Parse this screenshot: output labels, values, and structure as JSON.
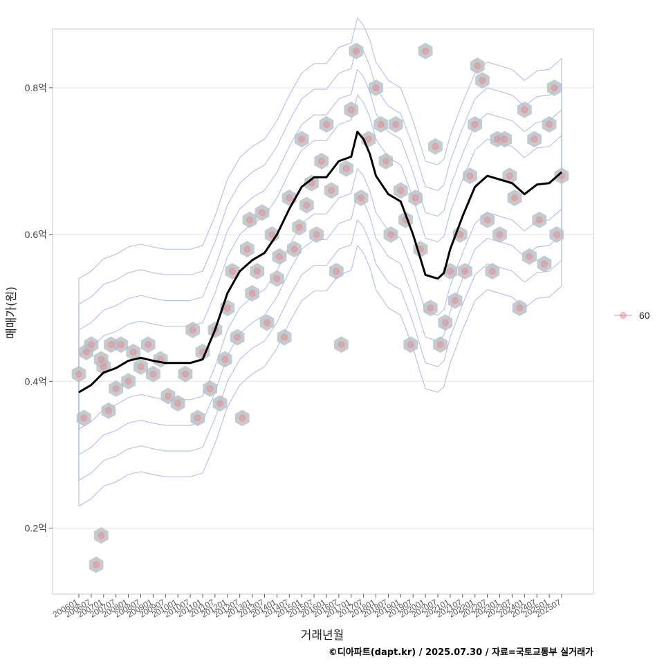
{
  "chart_data": {
    "type": "scatter",
    "xlabel": "거래년월",
    "ylabel": "매매가(원)",
    "x_tick_labels": [
      "200601",
      "200607",
      "200701",
      "200707",
      "200801",
      "200807",
      "200901",
      "200907",
      "201001",
      "201007",
      "201101",
      "201107",
      "201201",
      "201207",
      "201301",
      "201307",
      "201401",
      "201407",
      "201501",
      "201507",
      "201601",
      "201607",
      "201701",
      "201707",
      "201801",
      "201807",
      "201901",
      "201907",
      "202001",
      "202007",
      "202101",
      "202107",
      "202201",
      "202207",
      "202301",
      "202307",
      "202401",
      "202407",
      "202501",
      "202507"
    ],
    "y_ticks": [
      0.2,
      0.4,
      0.6,
      0.8
    ],
    "y_tick_labels": [
      "0.2억",
      "0.4억",
      "0.6억",
      "0.8억"
    ],
    "ylim": [
      0.11,
      0.88
    ],
    "grid": true,
    "legend": {
      "position": "right",
      "entries": [
        "60"
      ]
    },
    "colors": {
      "points": "#f08080",
      "line": "#000000",
      "hex": "#b5bec4",
      "contour": "#a9b8f0"
    },
    "trend_series": {
      "name": "moving-average",
      "x": [
        "2006.0",
        "2006.5",
        "2007.0",
        "2007.5",
        "2008.0",
        "2008.5",
        "2009.0",
        "2009.5",
        "2010.0",
        "2010.5",
        "2011.0",
        "2011.5",
        "2012.0",
        "2012.5",
        "2013.0",
        "2013.5",
        "2014.0",
        "2014.5",
        "2015.0",
        "2015.5",
        "2016.0",
        "2016.5",
        "2017.0",
        "2017.25",
        "2017.5",
        "2017.75",
        "2018.0",
        "2018.5",
        "2019.0",
        "2019.5",
        "2020.0",
        "2020.5",
        "2020.75",
        "2021.0",
        "2021.5",
        "2022.0",
        "2022.5",
        "2023.0",
        "2023.5",
        "2024.0",
        "2024.5",
        "2025.0",
        "2025.5"
      ],
      "y": [
        0.385,
        0.395,
        0.412,
        0.418,
        0.428,
        0.432,
        0.428,
        0.425,
        0.425,
        0.425,
        0.43,
        0.47,
        0.52,
        0.55,
        0.565,
        0.575,
        0.6,
        0.635,
        0.665,
        0.678,
        0.678,
        0.7,
        0.706,
        0.74,
        0.73,
        0.71,
        0.68,
        0.655,
        0.645,
        0.6,
        0.545,
        0.54,
        0.548,
        0.58,
        0.625,
        0.665,
        0.68,
        0.675,
        0.67,
        0.655,
        0.668,
        0.67,
        0.685
      ]
    },
    "points": [
      {
        "x": 2006.0,
        "y": 0.41
      },
      {
        "x": 2006.2,
        "y": 0.35
      },
      {
        "x": 2006.3,
        "y": 0.44
      },
      {
        "x": 2006.5,
        "y": 0.45
      },
      {
        "x": 2006.7,
        "y": 0.15
      },
      {
        "x": 2006.9,
        "y": 0.19
      },
      {
        "x": 2006.9,
        "y": 0.43
      },
      {
        "x": 2007.0,
        "y": 0.42
      },
      {
        "x": 2007.2,
        "y": 0.36
      },
      {
        "x": 2007.3,
        "y": 0.45
      },
      {
        "x": 2007.5,
        "y": 0.39
      },
      {
        "x": 2007.7,
        "y": 0.45
      },
      {
        "x": 2008.0,
        "y": 0.4
      },
      {
        "x": 2008.2,
        "y": 0.44
      },
      {
        "x": 2008.5,
        "y": 0.42
      },
      {
        "x": 2008.8,
        "y": 0.45
      },
      {
        "x": 2009.0,
        "y": 0.41
      },
      {
        "x": 2009.3,
        "y": 0.43
      },
      {
        "x": 2009.6,
        "y": 0.38
      },
      {
        "x": 2010.0,
        "y": 0.37
      },
      {
        "x": 2010.3,
        "y": 0.41
      },
      {
        "x": 2010.6,
        "y": 0.47
      },
      {
        "x": 2010.8,
        "y": 0.35
      },
      {
        "x": 2011.0,
        "y": 0.44
      },
      {
        "x": 2011.3,
        "y": 0.39
      },
      {
        "x": 2011.5,
        "y": 0.47
      },
      {
        "x": 2011.7,
        "y": 0.37
      },
      {
        "x": 2011.9,
        "y": 0.43
      },
      {
        "x": 2012.0,
        "y": 0.5
      },
      {
        "x": 2012.2,
        "y": 0.55
      },
      {
        "x": 2012.4,
        "y": 0.46
      },
      {
        "x": 2012.6,
        "y": 0.35
      },
      {
        "x": 2012.8,
        "y": 0.58
      },
      {
        "x": 2012.9,
        "y": 0.62
      },
      {
        "x": 2013.0,
        "y": 0.52
      },
      {
        "x": 2013.2,
        "y": 0.55
      },
      {
        "x": 2013.4,
        "y": 0.63
      },
      {
        "x": 2013.6,
        "y": 0.48
      },
      {
        "x": 2013.8,
        "y": 0.6
      },
      {
        "x": 2014.0,
        "y": 0.54
      },
      {
        "x": 2014.1,
        "y": 0.57
      },
      {
        "x": 2014.3,
        "y": 0.46
      },
      {
        "x": 2014.5,
        "y": 0.65
      },
      {
        "x": 2014.7,
        "y": 0.58
      },
      {
        "x": 2014.9,
        "y": 0.61
      },
      {
        "x": 2015.0,
        "y": 0.73
      },
      {
        "x": 2015.2,
        "y": 0.64
      },
      {
        "x": 2015.4,
        "y": 0.67
      },
      {
        "x": 2015.6,
        "y": 0.6
      },
      {
        "x": 2015.8,
        "y": 0.7
      },
      {
        "x": 2016.0,
        "y": 0.75
      },
      {
        "x": 2016.2,
        "y": 0.66
      },
      {
        "x": 2016.4,
        "y": 0.55
      },
      {
        "x": 2016.6,
        "y": 0.45
      },
      {
        "x": 2016.8,
        "y": 0.69
      },
      {
        "x": 2017.0,
        "y": 0.77
      },
      {
        "x": 2017.2,
        "y": 0.85
      },
      {
        "x": 2017.4,
        "y": 0.65
      },
      {
        "x": 2017.7,
        "y": 0.73
      },
      {
        "x": 2018.0,
        "y": 0.8
      },
      {
        "x": 2018.2,
        "y": 0.75
      },
      {
        "x": 2018.4,
        "y": 0.7
      },
      {
        "x": 2018.6,
        "y": 0.6
      },
      {
        "x": 2018.8,
        "y": 0.75
      },
      {
        "x": 2019.0,
        "y": 0.66
      },
      {
        "x": 2019.2,
        "y": 0.62
      },
      {
        "x": 2019.4,
        "y": 0.45
      },
      {
        "x": 2019.6,
        "y": 0.65
      },
      {
        "x": 2019.8,
        "y": 0.58
      },
      {
        "x": 2020.0,
        "y": 0.85
      },
      {
        "x": 2020.2,
        "y": 0.5
      },
      {
        "x": 2020.4,
        "y": 0.72
      },
      {
        "x": 2020.6,
        "y": 0.45
      },
      {
        "x": 2020.8,
        "y": 0.48
      },
      {
        "x": 2021.0,
        "y": 0.55
      },
      {
        "x": 2021.2,
        "y": 0.51
      },
      {
        "x": 2021.4,
        "y": 0.6
      },
      {
        "x": 2021.6,
        "y": 0.55
      },
      {
        "x": 2021.8,
        "y": 0.68
      },
      {
        "x": 2022.0,
        "y": 0.75
      },
      {
        "x": 2022.1,
        "y": 0.83
      },
      {
        "x": 2022.3,
        "y": 0.81
      },
      {
        "x": 2022.5,
        "y": 0.62
      },
      {
        "x": 2022.7,
        "y": 0.55
      },
      {
        "x": 2022.9,
        "y": 0.73
      },
      {
        "x": 2023.0,
        "y": 0.6
      },
      {
        "x": 2023.2,
        "y": 0.73
      },
      {
        "x": 2023.4,
        "y": 0.68
      },
      {
        "x": 2023.6,
        "y": 0.65
      },
      {
        "x": 2023.8,
        "y": 0.5
      },
      {
        "x": 2024.0,
        "y": 0.77
      },
      {
        "x": 2024.2,
        "y": 0.57
      },
      {
        "x": 2024.4,
        "y": 0.73
      },
      {
        "x": 2024.6,
        "y": 0.62
      },
      {
        "x": 2024.8,
        "y": 0.56
      },
      {
        "x": 2025.0,
        "y": 0.75
      },
      {
        "x": 2025.2,
        "y": 0.8
      },
      {
        "x": 2025.3,
        "y": 0.6
      },
      {
        "x": 2025.5,
        "y": 0.68
      }
    ]
  },
  "caption": "©디아파트(dapt.kr) / 2025.07.30 / 자료=국토교통부 실거래가"
}
